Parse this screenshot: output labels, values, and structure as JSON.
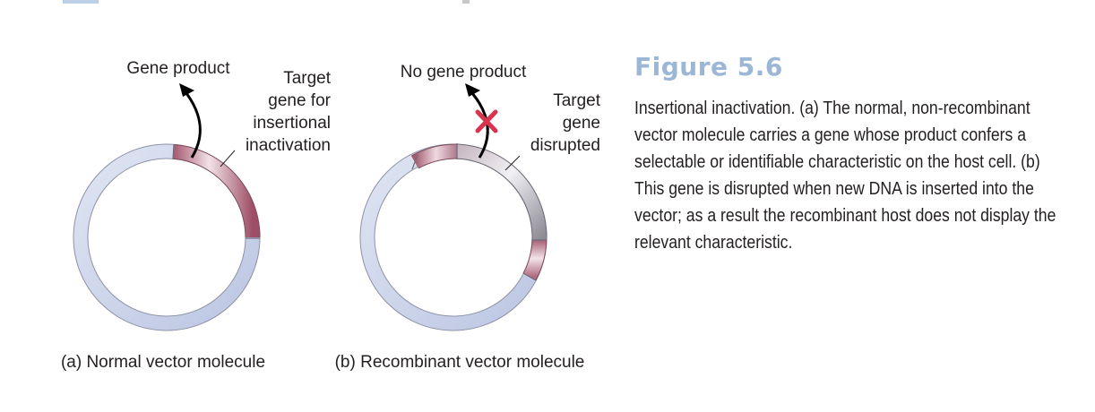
{
  "figure": {
    "title": "Figure 5.6",
    "caption": "Insertional inactivation. (a) The normal, non-recombinant vector molecule carries a gene whose product confers a selectable or identifiable characteristic on the host cell. (b) This gene is disrupted when new DNA is inserted into the vector; as a result the recombinant host does not display the relevant characteristic."
  },
  "panel_a": {
    "product_label": "Gene product",
    "target_label_lines": [
      "Target",
      "gene for",
      "insertional",
      "inactivation"
    ],
    "caption": "(a) Normal vector molecule"
  },
  "panel_b": {
    "product_label": "No gene product",
    "target_label_lines": [
      "Target",
      "gene",
      "disrupted"
    ],
    "caption": "(b) Recombinant vector molecule"
  },
  "colors": {
    "title": "#9cb7d6",
    "ring": "#c9d3ea",
    "gene": "#b06a80",
    "inserted_dna": "#b9b1bd",
    "cross": "#d8334f"
  }
}
